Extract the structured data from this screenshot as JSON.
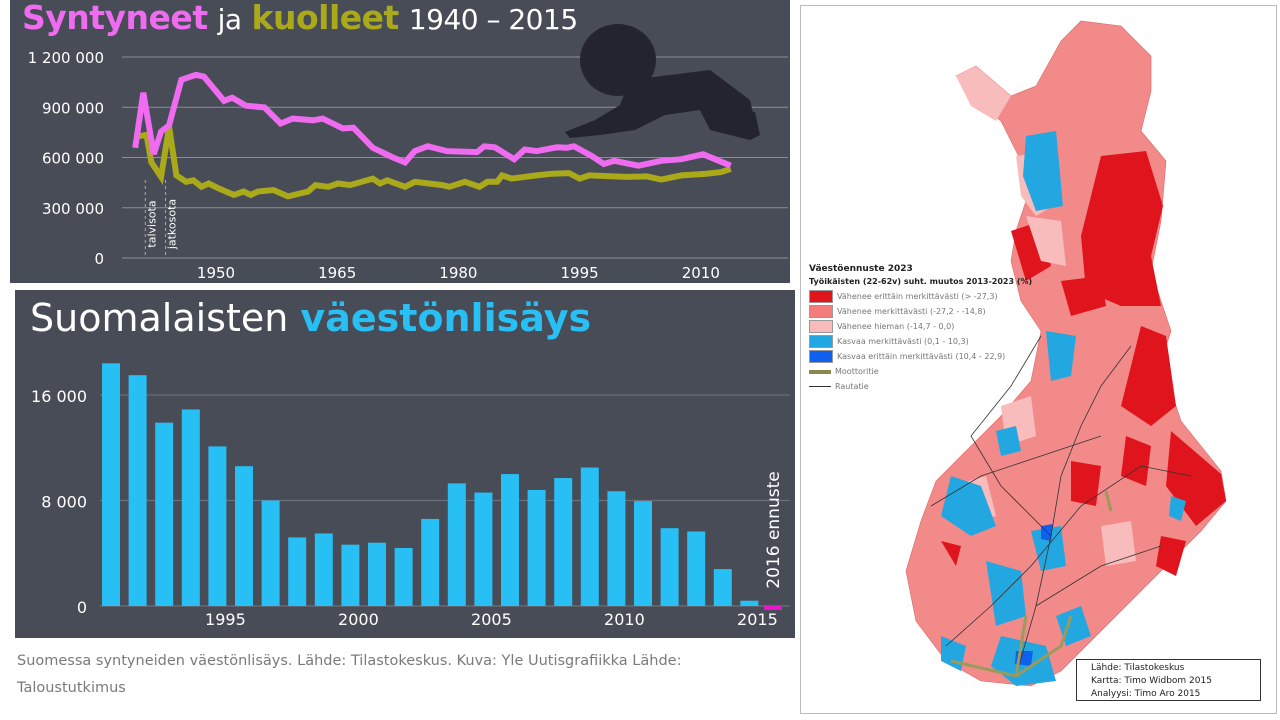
{
  "colors": {
    "panel": "#474c57",
    "births": "#ef6bef",
    "deaths": "#a9a91a",
    "bars": "#28bff5",
    "forecast": "#e619c8"
  },
  "top_title": {
    "part1": "Syntyneet",
    "part2": "ja",
    "part3": "kuolleet",
    "part4": "1940 – 2015"
  },
  "bottom_title": {
    "part1": "Suomalaisten",
    "part2": "väestönlisäys"
  },
  "caption": "Suomessa syntyneiden väestönlisäys. Lähde: Tilastokeskus.  Kuva: Yle Uutisgrafiikka Lähde: Taloustutkimus",
  "chart_data": [
    {
      "type": "line",
      "title": "Syntyneet ja kuolleet 1940 – 2015",
      "xlabel": "",
      "ylabel": "",
      "xlim": [
        1940,
        2015
      ],
      "ylim": [
        0,
        1200000
      ],
      "yticks": [
        0,
        300000,
        600000,
        900000,
        1200000
      ],
      "ytick_labels": [
        "0",
        "300 000",
        "600 000",
        "900 000",
        "1 200 000"
      ],
      "xticks": [
        1950,
        1965,
        1980,
        1995,
        2010
      ],
      "xtick_labels": [
        "1950",
        "1965",
        "1980",
        "1995",
        "2010"
      ],
      "annotations": [
        {
          "year": 1941,
          "text": "talvisota"
        },
        {
          "year": 1944,
          "text": "jatkosota"
        }
      ],
      "grid": true,
      "series": [
        {
          "name": "Syntyneet",
          "points": [
            [
              1940,
              658000
            ],
            [
              1941,
              986000
            ],
            [
              1942.3,
              620000
            ],
            [
              1943.2,
              755000
            ],
            [
              1944.2,
              793000
            ],
            [
              1945.7,
              1064000
            ],
            [
              1947.5,
              1093000
            ],
            [
              1948.5,
              1083000
            ],
            [
              1951,
              938000
            ],
            [
              1952,
              957000
            ],
            [
              1953.7,
              909000
            ],
            [
              1956,
              899000
            ],
            [
              1958,
              803000
            ],
            [
              1959.5,
              832000
            ],
            [
              1962,
              822000
            ],
            [
              1963.2,
              832000
            ],
            [
              1965.7,
              774000
            ],
            [
              1967,
              778000
            ],
            [
              1969.4,
              658000
            ],
            [
              1971.9,
              600000
            ],
            [
              1973.4,
              571000
            ],
            [
              1974.6,
              638000
            ],
            [
              1976.2,
              667000
            ],
            [
              1978.6,
              638000
            ],
            [
              1982.3,
              632000
            ],
            [
              1983.2,
              667000
            ],
            [
              1984.5,
              661000
            ],
            [
              1986.9,
              590000
            ],
            [
              1988.2,
              648000
            ],
            [
              1989.7,
              638000
            ],
            [
              1992.2,
              661000
            ],
            [
              1993.4,
              658000
            ],
            [
              1994.3,
              667000
            ],
            [
              1996.5,
              609000
            ],
            [
              1998,
              561000
            ],
            [
              1999.3,
              580000
            ],
            [
              2002.3,
              551000
            ],
            [
              2005.1,
              580000
            ],
            [
              2007.6,
              590000
            ],
            [
              2010.3,
              619000
            ],
            [
              2013.7,
              551000
            ]
          ]
        },
        {
          "name": "Kuolleet",
          "points": [
            [
              1940.1,
              725000
            ],
            [
              1941.4,
              735000
            ],
            [
              1942,
              571000
            ],
            [
              1943.2,
              484000
            ],
            [
              1944.2,
              783000
            ],
            [
              1945.1,
              493000
            ],
            [
              1946.3,
              455000
            ],
            [
              1947.2,
              464000
            ],
            [
              1948.2,
              425000
            ],
            [
              1949.1,
              445000
            ],
            [
              1950.3,
              416000
            ],
            [
              1952.2,
              377000
            ],
            [
              1953.4,
              397000
            ],
            [
              1954.3,
              377000
            ],
            [
              1955.2,
              397000
            ],
            [
              1957.1,
              406000
            ],
            [
              1958.9,
              368000
            ],
            [
              1961.4,
              397000
            ],
            [
              1962.3,
              435000
            ],
            [
              1963.9,
              425000
            ],
            [
              1965.1,
              445000
            ],
            [
              1966.6,
              435000
            ],
            [
              1969.4,
              474000
            ],
            [
              1970.3,
              445000
            ],
            [
              1971.2,
              464000
            ],
            [
              1973.4,
              425000
            ],
            [
              1974.6,
              455000
            ],
            [
              1978,
              435000
            ],
            [
              1978.9,
              425000
            ],
            [
              1980.8,
              455000
            ],
            [
              1982.6,
              425000
            ],
            [
              1983.6,
              455000
            ],
            [
              1984.8,
              455000
            ],
            [
              1985.4,
              493000
            ],
            [
              1986.6,
              474000
            ],
            [
              1989.7,
              493000
            ],
            [
              1991.6,
              503000
            ],
            [
              1993.7,
              507000
            ],
            [
              1995,
              474000
            ],
            [
              1996.2,
              493000
            ],
            [
              2000.8,
              484000
            ],
            [
              2003.3,
              487000
            ],
            [
              2005.1,
              468000
            ],
            [
              2007.6,
              493000
            ],
            [
              2010.7,
              503000
            ],
            [
              2012.5,
              513000
            ],
            [
              2013.7,
              532000
            ]
          ]
        }
      ]
    },
    {
      "type": "bar",
      "title": "Suomalaisten väestönlisäys",
      "xlabel": "",
      "ylabel": "",
      "categories": [
        1991,
        1992,
        1993,
        1994,
        1995,
        1996,
        1997,
        1998,
        1999,
        2000,
        2001,
        2002,
        2003,
        2004,
        2005,
        2006,
        2007,
        2008,
        2009,
        2010,
        2011,
        2012,
        2013,
        2014,
        2015
      ],
      "values": [
        18400,
        17500,
        13900,
        14900,
        12100,
        10600,
        8000,
        5200,
        5500,
        4650,
        4800,
        4400,
        6600,
        9300,
        8600,
        10000,
        8800,
        9700,
        10500,
        8700,
        7950,
        5900,
        5650,
        2800,
        400
      ],
      "forecast": {
        "category": 2016,
        "value": -300,
        "label": "2016 ennuste"
      },
      "ylim": [
        0,
        18500
      ],
      "yticks": [
        0,
        8000,
        16000
      ],
      "ytick_labels": [
        "0",
        "8 000",
        "16 000"
      ],
      "xticks": [
        1995,
        2000,
        2005,
        2010,
        2015
      ],
      "xtick_labels": [
        "1995",
        "2000",
        "2005",
        "2010",
        "2015"
      ],
      "grid": true
    }
  ],
  "map": {
    "legend_title": "Väestöennuste 2023",
    "legend_subtitle": "Työikäisten (22-62v) suht. muutos 2013-2023 (%)",
    "legend_items": [
      {
        "label": "Vähenee erittäin merkittävästi (> -27,3)",
        "color": "#e0141c"
      },
      {
        "label": "Vähenee merkittävästi (-27,2 - -14,8)",
        "color": "#f47c7c"
      },
      {
        "label": "Vähenee hieman (-14,7 - 0,0)",
        "color": "#f9bcbc"
      },
      {
        "label": "Kasvaa merkittävästi (0,1 - 10,3)",
        "color": "#22a7e0"
      },
      {
        "label": "Kasvaa erittäin merkittävästi (10,4 - 22,9)",
        "color": "#1060f0"
      },
      {
        "label": "Moottoritie",
        "color": "#8a8a50"
      },
      {
        "label": "Rautatie",
        "color": "#333333"
      }
    ],
    "credits": [
      "Lähde: Tilastokeskus",
      "Kartta: Timo Widbom 2015",
      "Analyysi: Timo Aro 2015"
    ]
  }
}
